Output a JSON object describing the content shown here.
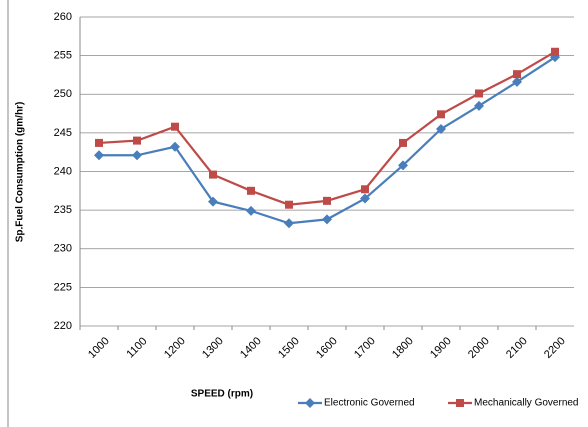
{
  "chart_data": {
    "type": "line",
    "x_label": "SPEED (rpm)",
    "y_label": "Sp.Fuel Consumption (gm/hr)",
    "categories": [
      "1000",
      "1100",
      "1200",
      "1300",
      "1400",
      "1500",
      "1600",
      "1700",
      "1800",
      "1900",
      "2000",
      "2100",
      "2200"
    ],
    "series": [
      {
        "name": "Electronic Governed",
        "color": "#4a7ebb",
        "marker": "diamond",
        "values": [
          242.1,
          242.1,
          243.2,
          236.1,
          234.9,
          233.3,
          233.8,
          236.5,
          240.8,
          245.5,
          248.5,
          251.6,
          254.8
        ]
      },
      {
        "name": "Mechanically Governed",
        "color": "#be4b48",
        "marker": "square",
        "values": [
          243.7,
          244.0,
          245.8,
          239.6,
          237.5,
          235.7,
          236.2,
          237.7,
          243.7,
          247.4,
          250.1,
          252.6,
          255.5
        ]
      }
    ],
    "ylim": [
      220,
      260
    ],
    "yticks": [
      220,
      225,
      230,
      235,
      240,
      245,
      250,
      255,
      260
    ],
    "grid": true
  }
}
